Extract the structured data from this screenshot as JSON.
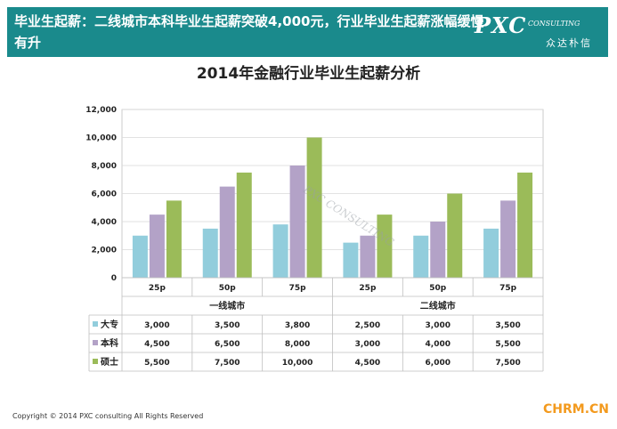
{
  "banner": {
    "headline": "毕业生起薪：二线城市本科毕业生起薪突破4,000元，行业毕业生起薪涨幅缓慢有升"
  },
  "logo": {
    "main": "PXC",
    "sub": "CONSULTING",
    "cn": "众达朴信"
  },
  "footer": "Copyright © 2014  PXC consulting All Rights Reserved",
  "watermark": "CHRM.CN",
  "colors": {
    "banner": "#1a8a8c",
    "大专": "#92cddc",
    "本科": "#b3a2c7",
    "硕士": "#9bbb59"
  },
  "chart_data": {
    "type": "bar",
    "title": "2014年金融行业毕业生起薪分析",
    "groups": [
      "一线城市",
      "二线城市"
    ],
    "categories": [
      "25p",
      "50p",
      "75p",
      "25p",
      "50p",
      "75p"
    ],
    "series": [
      {
        "name": "大专",
        "values": [
          3000,
          3500,
          3800,
          2500,
          3000,
          3500
        ]
      },
      {
        "name": "本科",
        "values": [
          4500,
          6500,
          8000,
          3000,
          4000,
          5500
        ]
      },
      {
        "name": "硕士",
        "values": [
          5500,
          7500,
          10000,
          4500,
          6000,
          7500
        ]
      }
    ],
    "table": [
      [
        "3,000",
        "3,500",
        "3,800",
        "2,500",
        "3,000",
        "3,500"
      ],
      [
        "4,500",
        "6,500",
        "8,000",
        "3,000",
        "4,000",
        "5,500"
      ],
      [
        "5,500",
        "7,500",
        "10,000",
        "4,500",
        "6,000",
        "7,500"
      ]
    ],
    "yticks": [
      "0",
      "2,000",
      "4,000",
      "6,000",
      "8,000",
      "10,000",
      "12,000"
    ],
    "ylim": [
      0,
      12000
    ],
    "grid": true,
    "legend": "data-table"
  }
}
